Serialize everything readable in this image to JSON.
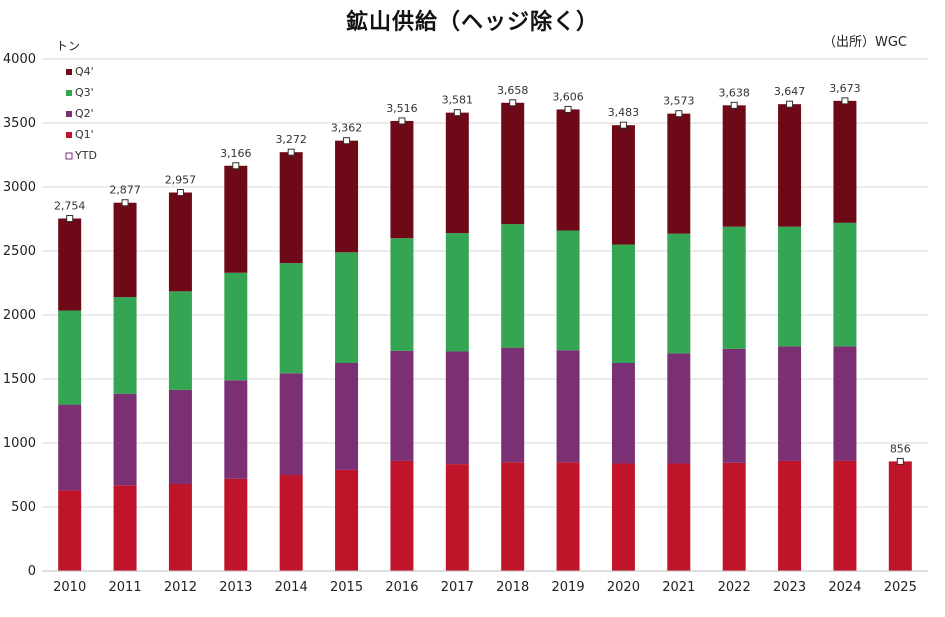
{
  "title": "鉱山供給（ヘッジ除く）",
  "source": "（出所）WGC",
  "unit": "トン",
  "chart_data": {
    "type": "bar",
    "stacked": true,
    "title": "鉱山供給（ヘッジ除く）",
    "ylabel": "トン",
    "xlabel": "",
    "ylim": [
      0,
      4000
    ],
    "yticks": [
      0,
      500,
      1000,
      1500,
      2000,
      2500,
      3000,
      3500,
      4000
    ],
    "grid": true,
    "legend_position": "top-left",
    "categories": [
      "2010",
      "2011",
      "2012",
      "2013",
      "2014",
      "2015",
      "2016",
      "2017",
      "2018",
      "2019",
      "2020",
      "2021",
      "2022",
      "2023",
      "2024",
      "2025"
    ],
    "series": [
      {
        "name": "Q1'",
        "color": "#c0142a",
        "values": [
          630,
          670,
          680,
          720,
          750,
          790,
          860,
          835,
          850,
          850,
          840,
          840,
          845,
          860,
          860,
          856
        ]
      },
      {
        "name": "Q2'",
        "color": "#7b3074",
        "values": [
          670,
          715,
          735,
          770,
          795,
          835,
          860,
          880,
          895,
          875,
          785,
          860,
          890,
          895,
          895,
          0
        ]
      },
      {
        "name": "Q3'",
        "color": "#33a553",
        "values": [
          735,
          755,
          770,
          840,
          860,
          865,
          880,
          925,
          965,
          935,
          925,
          935,
          955,
          935,
          965,
          0
        ]
      },
      {
        "name": "Q4'",
        "color": "#6e0a18",
        "values": [
          719,
          737,
          772,
          836,
          867,
          872,
          916,
          941,
          948,
          946,
          933,
          938,
          948,
          957,
          953,
          0
        ]
      }
    ],
    "ytd": {
      "name": "YTD",
      "values": [
        2754,
        2877,
        2957,
        3166,
        3272,
        3362,
        3516,
        3581,
        3658,
        3606,
        3483,
        3573,
        3638,
        3647,
        3673,
        856
      ],
      "labels": [
        "2,754",
        "2,877",
        "2,957",
        "3,166",
        "3,272",
        "3,362",
        "3,516",
        "3,581",
        "3,658",
        "3,606",
        "3,483",
        "3,573",
        "3,638",
        "3,647",
        "3,673",
        "856"
      ]
    },
    "legend": [
      "Q4'",
      "Q3'",
      "Q2'",
      "Q1'",
      "YTD"
    ]
  }
}
